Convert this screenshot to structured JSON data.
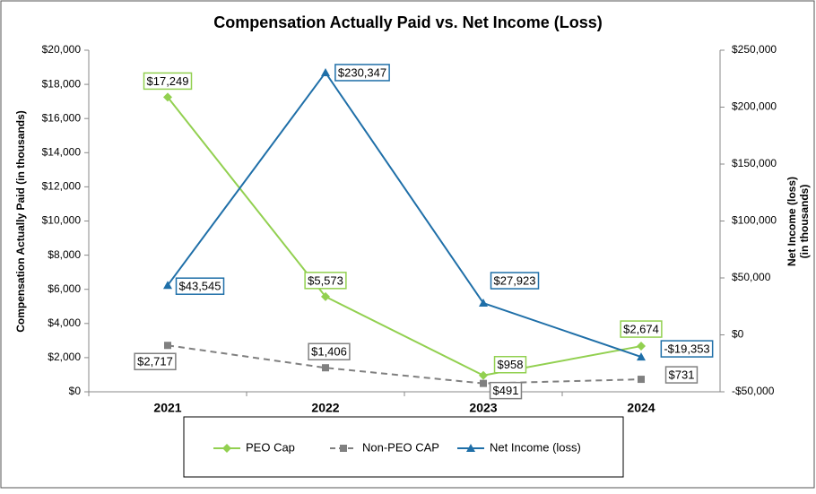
{
  "chart_data": {
    "type": "line",
    "title": "Compensation Actually Paid vs. Net Income (Loss)",
    "ylabel": "Compensation Actually Paid (in thousands)",
    "y2label": [
      "Net Income (loss)",
      "(in thousands)"
    ],
    "categories": [
      "2021",
      "2022",
      "2023",
      "2024"
    ],
    "ylim": [
      0,
      20000
    ],
    "yticks": [
      {
        "value": 0,
        "label": "$0"
      },
      {
        "value": 2000,
        "label": "$2,000"
      },
      {
        "value": 4000,
        "label": "$4,000"
      },
      {
        "value": 6000,
        "label": "$6,000"
      },
      {
        "value": 8000,
        "label": "$8,000"
      },
      {
        "value": 10000,
        "label": "$10,000"
      },
      {
        "value": 12000,
        "label": "$12,000"
      },
      {
        "value": 14000,
        "label": "$14,000"
      },
      {
        "value": 16000,
        "label": "$16,000"
      },
      {
        "value": 18000,
        "label": "$18,000"
      },
      {
        "value": 20000,
        "label": "$20,000"
      }
    ],
    "y2lim": [
      -50000,
      250000
    ],
    "y2ticks": [
      {
        "value": -50000,
        "label": "-$50,000"
      },
      {
        "value": 0,
        "label": "$0"
      },
      {
        "value": 50000,
        "label": "$50,000"
      },
      {
        "value": 100000,
        "label": "$100,000"
      },
      {
        "value": 150000,
        "label": "$150,000"
      },
      {
        "value": 200000,
        "label": "$200,000"
      },
      {
        "value": 250000,
        "label": "$250,000"
      }
    ],
    "grid": false,
    "legend": "bottom",
    "series": [
      {
        "name": "PEO Cap",
        "color": "#92d050",
        "marker": "diamond",
        "line_style": "solid",
        "values": [
          17249,
          5573,
          958,
          2674
        ],
        "value_labels": [
          "$17,249",
          "$5,573",
          "$958",
          "$2,674"
        ]
      },
      {
        "name": "Non-PEO CAP",
        "color": "#808080",
        "marker": "square",
        "line_style": "dashed",
        "values": [
          2717,
          1406,
          491,
          731
        ],
        "value_labels": [
          "$2,717",
          "$1,406",
          "$491",
          "$731"
        ]
      },
      {
        "name": "Net Income (loss)",
        "color": "#1f6fa8",
        "marker": "triangle",
        "line_style": "solid",
        "axis": "y2",
        "values": [
          43545,
          230347,
          27923,
          -19353
        ],
        "value_labels": [
          "$43,545",
          "$230,347",
          "$27,923",
          "-$19,353"
        ]
      }
    ]
  }
}
